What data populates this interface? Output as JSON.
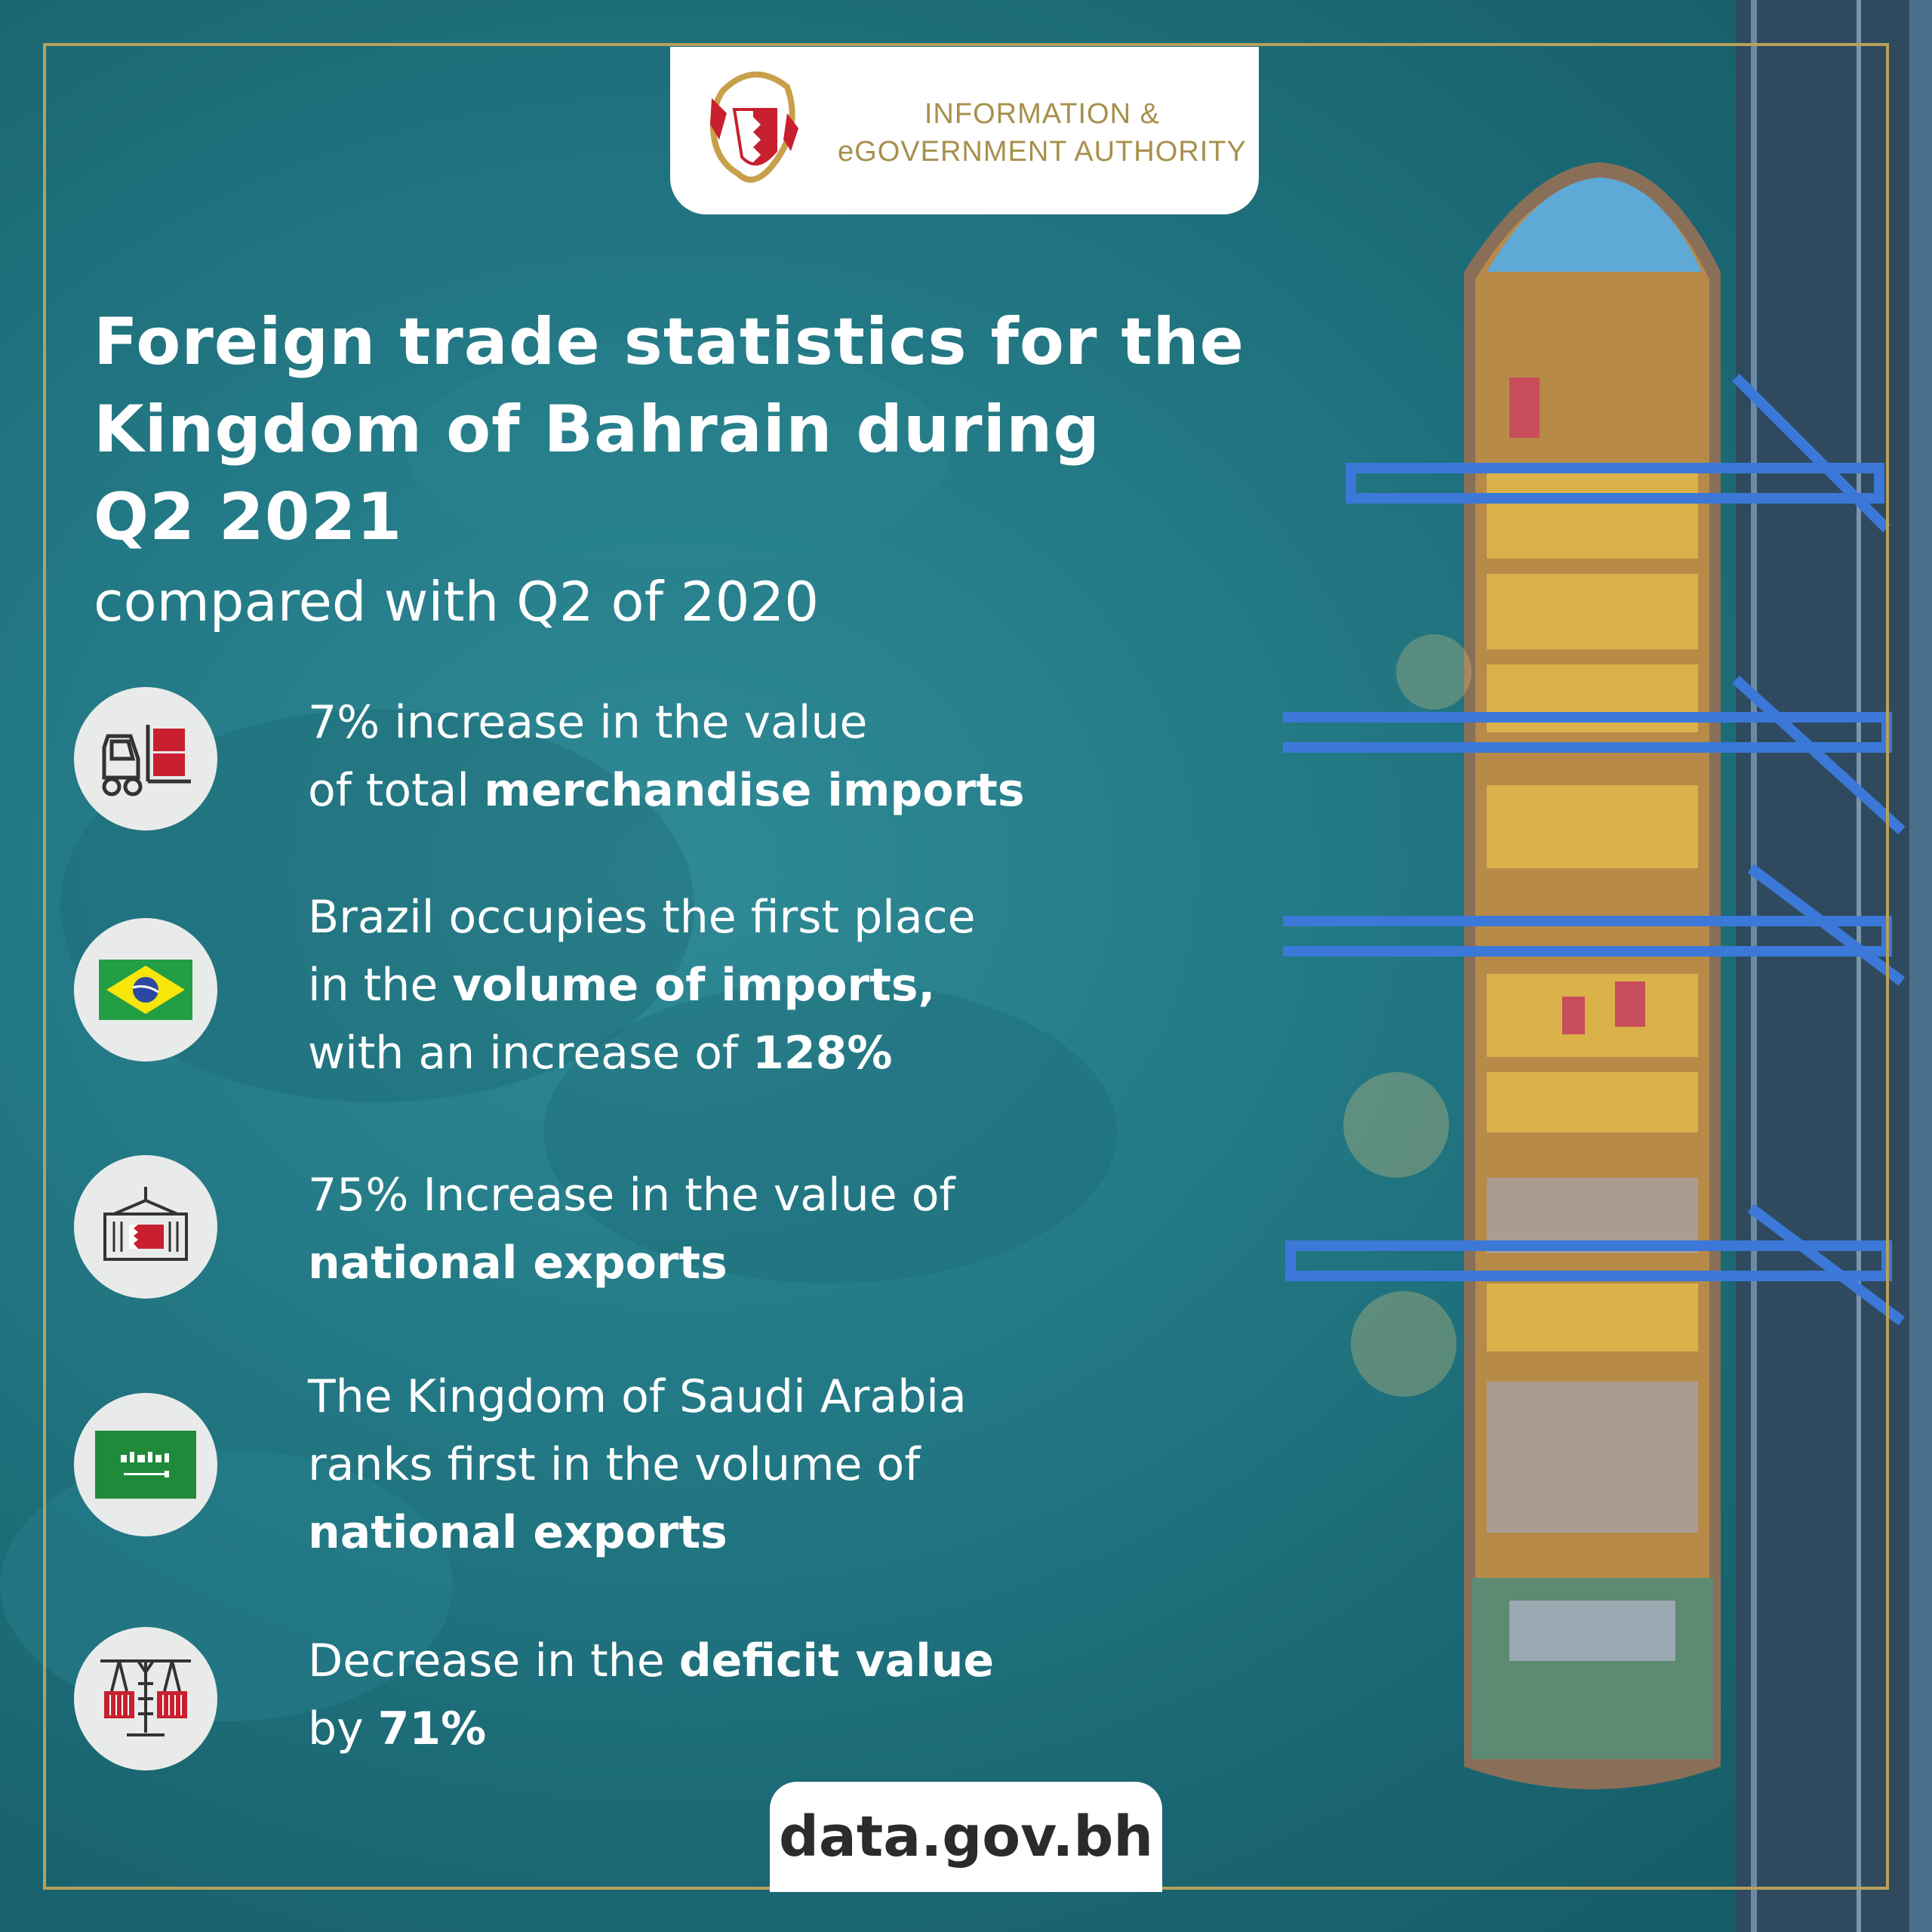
{
  "organization": {
    "name_line1": "INFORMATION &",
    "name_line2": "eGOVERNMENT AUTHORITY"
  },
  "title": {
    "line1": "Foreign trade statistics for the",
    "line2": "Kingdom of Bahrain during",
    "line3": "Q2 2021",
    "subtitle": "compared with Q2 of 2020"
  },
  "stats": [
    {
      "icon": "forklift-icon",
      "line1": [
        {
          "text": "7% increase in the value",
          "bold": false
        }
      ],
      "line2": [
        {
          "text": "of total ",
          "bold": false
        },
        {
          "text": "merchandise imports",
          "bold": true
        }
      ]
    },
    {
      "icon": "brazil-flag-icon",
      "line1": [
        {
          "text": "Brazil occupies the first place",
          "bold": false
        }
      ],
      "line2": [
        {
          "text": "in the ",
          "bold": false
        },
        {
          "text": "volume of imports,",
          "bold": true
        }
      ],
      "line3": [
        {
          "text": "with an increase of ",
          "bold": false
        },
        {
          "text": "128%",
          "bold": true
        }
      ]
    },
    {
      "icon": "container-bahrain-flag-icon",
      "line1": [
        {
          "text": "75% Increase in the value of",
          "bold": false
        }
      ],
      "line2": [
        {
          "text": "national exports",
          "bold": true
        }
      ]
    },
    {
      "icon": "saudi-flag-icon",
      "line1": [
        {
          "text": "The Kingdom of Saudi Arabia",
          "bold": false
        }
      ],
      "line2": [
        {
          "text": "ranks first in the volume of",
          "bold": false
        }
      ],
      "line3": [
        {
          "text": "national exports",
          "bold": true
        }
      ]
    },
    {
      "icon": "crane-balance-icon",
      "line1": [
        {
          "text": "Decrease in the ",
          "bold": false
        },
        {
          "text": "deficit value",
          "bold": true
        }
      ],
      "line2": [
        {
          "text": "by ",
          "bold": false
        },
        {
          "text": "71%",
          "bold": true
        }
      ]
    }
  ],
  "footer": {
    "url": "data.gov.bh"
  },
  "colors": {
    "background": "#1f7480",
    "frame_gold": "#b8a15a",
    "logo_gold": "#a8904b",
    "icon_circle": "#e9ebea",
    "icon_red": "#c8202f"
  }
}
